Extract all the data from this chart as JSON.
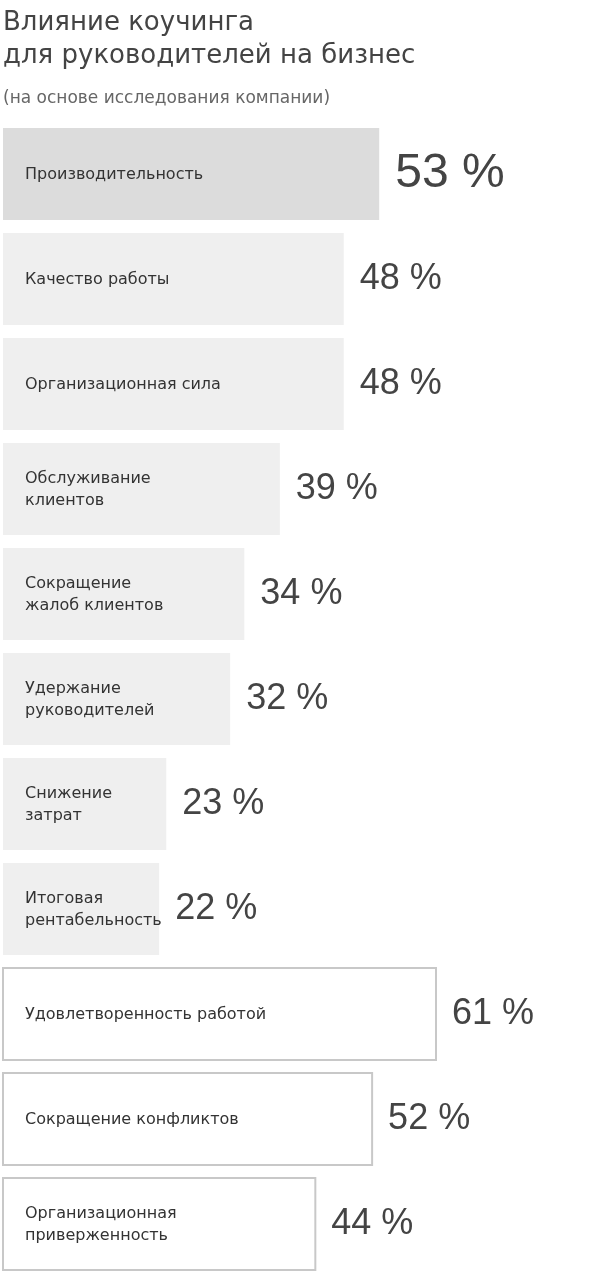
{
  "chart_data": {
    "type": "bar",
    "orientation": "horizontal",
    "title": "Влияние коучинга\nдля руководителей на бизнес",
    "subtitle": "(на основе исследования компании)",
    "categories": [
      "Производительность",
      "Качество работы",
      "Организационная сила",
      "Обслуживание\nклиентов",
      "Сокращение\nжалоб клиентов",
      "Удержание\nруководителей",
      "Снижение\nзатрат",
      "Итоговая\nрентабельность",
      "Удовлетворенность работой",
      "Сокращение конфликтов",
      "Организационная\nприверженность"
    ],
    "values": [
      53,
      48,
      48,
      39,
      34,
      32,
      23,
      22,
      61,
      52,
      44
    ],
    "colors": [
      "#dcdcdc",
      "#efefef",
      "#efefef",
      "#efefef",
      "#efefef",
      "#efefef",
      "#efefef",
      "#efefef",
      "#ffffff",
      "#ffffff",
      "#ffffff"
    ],
    "value_labels": [
      "53 %",
      "48 %",
      "48 %",
      "39 %",
      "34 %",
      "32 %",
      "23 %",
      "22 %",
      "61 %",
      "52 %",
      "44 %"
    ]
  }
}
